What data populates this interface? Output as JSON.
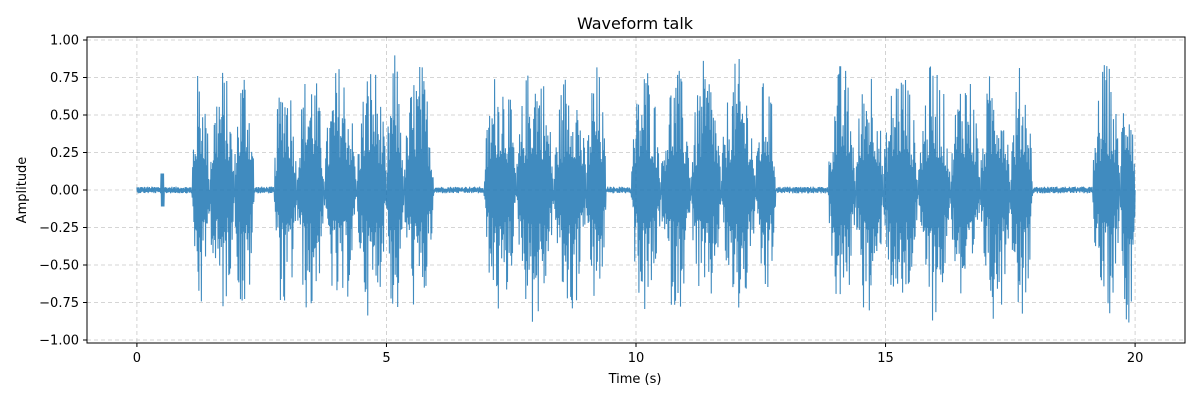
{
  "chart_data": {
    "type": "line",
    "title": "Waveform talk",
    "xlabel": "Time (s)",
    "ylabel": "Amplitude",
    "xlim": [
      -1,
      21
    ],
    "ylim": [
      -1.02,
      1.02
    ],
    "x_ticks": [
      0,
      5,
      10,
      15,
      20
    ],
    "x_tick_labels": [
      "0",
      "5",
      "10",
      "15",
      "20"
    ],
    "y_ticks": [
      -1.0,
      -0.75,
      -0.5,
      -0.25,
      0.0,
      0.25,
      0.5,
      0.75,
      1.0
    ],
    "y_tick_labels": [
      "−1.00",
      "−0.75",
      "−0.50",
      "−0.25",
      "0.00",
      "0.25",
      "0.50",
      "0.75",
      "1.00"
    ],
    "grid": true,
    "series_color": "#1f77b4",
    "duration": 20,
    "speech_segments": [
      [
        1.1,
        1.45,
        0.86
      ],
      [
        1.45,
        1.95,
        0.85
      ],
      [
        1.95,
        2.35,
        0.91
      ],
      [
        2.75,
        3.2,
        0.88
      ],
      [
        3.2,
        3.75,
        0.88
      ],
      [
        3.75,
        4.4,
        0.87
      ],
      [
        4.4,
        5.0,
        0.88
      ],
      [
        5.0,
        5.35,
        0.92
      ],
      [
        5.35,
        5.95,
        0.88
      ],
      [
        6.95,
        7.6,
        0.88
      ],
      [
        7.6,
        8.35,
        0.92
      ],
      [
        8.35,
        9.0,
        0.88
      ],
      [
        9.0,
        9.4,
        0.86
      ],
      [
        9.9,
        10.5,
        0.88
      ],
      [
        10.5,
        11.1,
        0.84
      ],
      [
        11.1,
        11.7,
        0.88
      ],
      [
        11.7,
        12.4,
        0.88
      ],
      [
        12.4,
        12.8,
        0.79
      ],
      [
        13.85,
        14.4,
        0.87
      ],
      [
        14.4,
        14.95,
        0.92
      ],
      [
        14.95,
        15.65,
        0.88
      ],
      [
        15.65,
        16.3,
        0.88
      ],
      [
        16.3,
        16.9,
        0.87
      ],
      [
        16.9,
        17.5,
        0.88
      ],
      [
        17.5,
        17.95,
        0.85
      ],
      [
        19.15,
        19.7,
        0.87
      ],
      [
        19.7,
        20.0,
        0.92
      ]
    ]
  }
}
